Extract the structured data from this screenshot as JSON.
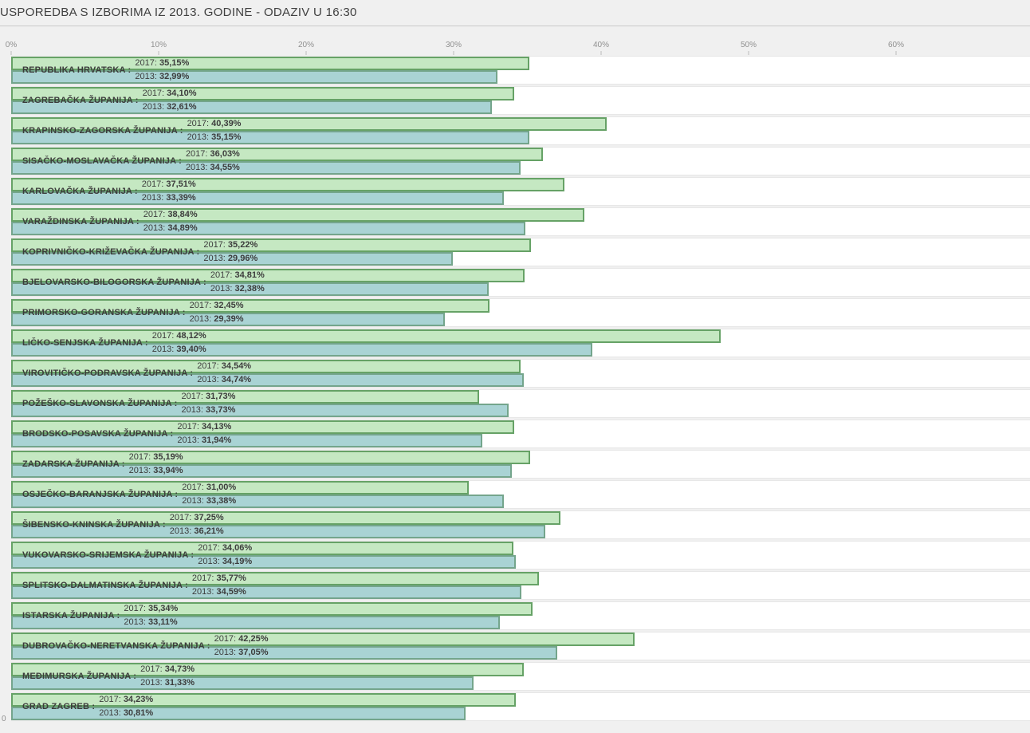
{
  "page": {
    "background": "#f0f0f0",
    "bottom_left_axis_label": "0"
  },
  "header": {
    "title": "USPOREDBA S IZBORIMA IZ 2013. GODINE - ODAZIV U 16:30"
  },
  "chart_data": {
    "type": "bar",
    "orientation": "horizontal",
    "title": "USPOREDBA S IZBORIMA IZ 2013. GODINE - ODAZIV U 16:30",
    "xlabel": "",
    "ylabel": "",
    "x_axis": {
      "unit": "%",
      "range": [
        0,
        69
      ],
      "grid": false,
      "ticks": [
        {
          "label": "0%",
          "value": 0
        },
        {
          "label": "10%",
          "value": 10
        },
        {
          "label": "20%",
          "value": 20
        },
        {
          "label": "30%",
          "value": 30
        },
        {
          "label": "40%",
          "value": 40
        },
        {
          "label": "50%",
          "value": 50
        },
        {
          "label": "60%",
          "value": 60
        }
      ]
    },
    "series_meta": [
      {
        "name": "2017",
        "fill": "#c5e8c2",
        "border": "#66a266"
      },
      {
        "name": "2013",
        "fill": "#a9d3d4",
        "border": "#74a58c"
      }
    ],
    "rows": [
      {
        "label": "REPUBLIKA HRVATSKA :",
        "val_2017": 35.15,
        "disp_2017": "35,15%",
        "val_2013": 32.99,
        "disp_2013": "32,99%"
      },
      {
        "label": "ZAGREBAČKA ŽUPANIJA :",
        "val_2017": 34.1,
        "disp_2017": "34,10%",
        "val_2013": 32.61,
        "disp_2013": "32,61%"
      },
      {
        "label": "KRAPINSKO-ZAGORSKA ŽUPANIJA :",
        "val_2017": 40.39,
        "disp_2017": "40,39%",
        "val_2013": 35.15,
        "disp_2013": "35,15%"
      },
      {
        "label": "SISAČKO-MOSLAVAČKA ŽUPANIJA :",
        "val_2017": 36.03,
        "disp_2017": "36,03%",
        "val_2013": 34.55,
        "disp_2013": "34,55%"
      },
      {
        "label": "KARLOVAČKA ŽUPANIJA :",
        "val_2017": 37.51,
        "disp_2017": "37,51%",
        "val_2013": 33.39,
        "disp_2013": "33,39%"
      },
      {
        "label": "VARAŽDINSKA ŽUPANIJA :",
        "val_2017": 38.84,
        "disp_2017": "38,84%",
        "val_2013": 34.89,
        "disp_2013": "34,89%"
      },
      {
        "label": "KOPRIVNIČKO-KRIŽEVAČKA ŽUPANIJA :",
        "val_2017": 35.22,
        "disp_2017": "35,22%",
        "val_2013": 29.96,
        "disp_2013": "29,96%"
      },
      {
        "label": "BJELOVARSKO-BILOGORSKA ŽUPANIJA :",
        "val_2017": 34.81,
        "disp_2017": "34,81%",
        "val_2013": 32.38,
        "disp_2013": "32,38%"
      },
      {
        "label": "PRIMORSKO-GORANSKA ŽUPANIJA :",
        "val_2017": 32.45,
        "disp_2017": "32,45%",
        "val_2013": 29.39,
        "disp_2013": "29,39%"
      },
      {
        "label": "LIČKO-SENJSKA ŽUPANIJA :",
        "val_2017": 48.12,
        "disp_2017": "48,12%",
        "val_2013": 39.4,
        "disp_2013": "39,40%"
      },
      {
        "label": "VIROVITIČKO-PODRAVSKA ŽUPANIJA :",
        "val_2017": 34.54,
        "disp_2017": "34,54%",
        "val_2013": 34.74,
        "disp_2013": "34,74%"
      },
      {
        "label": "POŽEŠKO-SLAVONSKA ŽUPANIJA :",
        "val_2017": 31.73,
        "disp_2017": "31,73%",
        "val_2013": 33.73,
        "disp_2013": "33,73%"
      },
      {
        "label": "BRODSKO-POSAVSKA ŽUPANIJA :",
        "val_2017": 34.13,
        "disp_2017": "34,13%",
        "val_2013": 31.94,
        "disp_2013": "31,94%"
      },
      {
        "label": "ZADARSKA ŽUPANIJA :",
        "val_2017": 35.19,
        "disp_2017": "35,19%",
        "val_2013": 33.94,
        "disp_2013": "33,94%"
      },
      {
        "label": "OSJEČKO-BARANJSKA ŽUPANIJA :",
        "val_2017": 31.0,
        "disp_2017": "31,00%",
        "val_2013": 33.38,
        "disp_2013": "33,38%"
      },
      {
        "label": "ŠIBENSKO-KNINSKA ŽUPANIJA :",
        "val_2017": 37.25,
        "disp_2017": "37,25%",
        "val_2013": 36.21,
        "disp_2013": "36,21%"
      },
      {
        "label": "VUKOVARSKO-SRIJEMSKA ŽUPANIJA :",
        "val_2017": 34.06,
        "disp_2017": "34,06%",
        "val_2013": 34.19,
        "disp_2013": "34,19%"
      },
      {
        "label": "SPLITSKO-DALMATINSKA ŽUPANIJA :",
        "val_2017": 35.77,
        "disp_2017": "35,77%",
        "val_2013": 34.59,
        "disp_2013": "34,59%"
      },
      {
        "label": "ISTARSKA ŽUPANIJA :",
        "val_2017": 35.34,
        "disp_2017": "35,34%",
        "val_2013": 33.11,
        "disp_2013": "33,11%"
      },
      {
        "label": "DUBROVAČKO-NERETVANSKA ŽUPANIJA :",
        "val_2017": 42.25,
        "disp_2017": "42,25%",
        "val_2013": 37.05,
        "disp_2013": "37,05%"
      },
      {
        "label": "MEĐIMURSKA ŽUPANIJA :",
        "val_2017": 34.73,
        "disp_2017": "34,73%",
        "val_2013": 31.33,
        "disp_2013": "31,33%"
      },
      {
        "label": "GRAD ZAGREB :",
        "val_2017": 34.23,
        "disp_2017": "34,23%",
        "val_2013": 30.81,
        "disp_2013": "30,81%"
      }
    ]
  }
}
